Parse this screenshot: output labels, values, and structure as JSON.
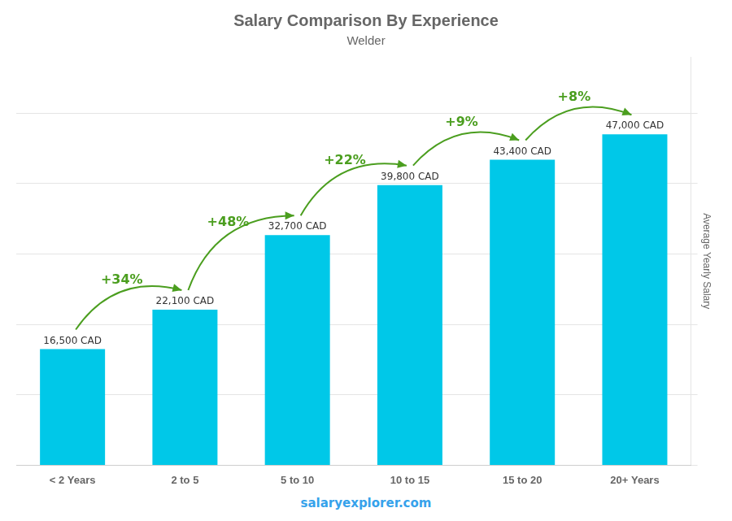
{
  "chart_data": {
    "type": "bar",
    "title": "Salary Comparison By Experience",
    "subtitle": "Welder",
    "categories": [
      "< 2 Years",
      "2 to 5",
      "5 to 10",
      "10 to 15",
      "15 to 20",
      "20+ Years"
    ],
    "values": [
      16500,
      22100,
      32700,
      39800,
      43400,
      47000
    ],
    "value_labels": [
      "16,500 CAD",
      "22,100 CAD",
      "32,700 CAD",
      "39,800 CAD",
      "43,400 CAD",
      "47,000 CAD"
    ],
    "data_labels": true,
    "color": "#00c8e8",
    "ylabel": "Average Yearly Salary",
    "ylim": [
      0,
      58000
    ],
    "yticks": [
      0,
      10000,
      20000,
      30000,
      40000,
      50000
    ],
    "grid": true,
    "tick_labels": "x",
    "annotations": [
      {
        "text": "+34%",
        "between": [
          "< 2 Years",
          "2 to 5"
        ]
      },
      {
        "text": "+48%",
        "between": [
          "2 to 5",
          "5 to 10"
        ]
      },
      {
        "text": "+22%",
        "between": [
          "5 to 10",
          "10 to 15"
        ]
      },
      {
        "text": "+9%",
        "between": [
          "10 to 15",
          "15 to 20"
        ]
      },
      {
        "text": "+8%",
        "between": [
          "15 to 20",
          "20+ Years"
        ]
      }
    ],
    "footer": "salaryexplorer.com"
  }
}
